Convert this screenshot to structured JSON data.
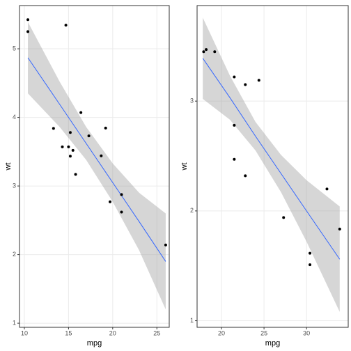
{
  "chart_data": [
    {
      "type": "scatter",
      "xlabel": "mpg",
      "ylabel": "wt",
      "color": "#000000",
      "fit_color": "#3366ff",
      "band_color": "#999999",
      "grid": true,
      "xlim": [
        9.45,
        26.4
      ],
      "ylim": [
        0.94,
        5.63
      ],
      "xticks": [
        10,
        15,
        20,
        25
      ],
      "yticks": [
        1,
        2,
        3,
        4,
        5
      ],
      "x": [
        10.4,
        10.4,
        14.7,
        13.3,
        14.3,
        15.0,
        15.2,
        15.2,
        15.5,
        15.8,
        16.4,
        17.3,
        18.7,
        19.2,
        19.7,
        21.0,
        21.0,
        26.0
      ],
      "values": [
        5.424,
        5.25,
        5.345,
        3.84,
        3.57,
        3.57,
        3.435,
        3.78,
        3.52,
        3.17,
        4.07,
        3.73,
        3.44,
        3.845,
        2.77,
        2.875,
        2.62,
        2.14
      ],
      "fit": {
        "x": [
          10.4,
          14,
          17,
          20,
          23,
          26
        ],
        "y": [
          4.87,
          4.19,
          3.62,
          3.05,
          2.48,
          1.9
        ],
        "lower": [
          4.35,
          3.86,
          3.38,
          2.77,
          2.06,
          1.2
        ],
        "upper": [
          5.39,
          4.52,
          3.86,
          3.33,
          2.9,
          2.6
        ]
      }
    },
    {
      "type": "scatter",
      "xlabel": "mpg",
      "ylabel": "wt",
      "color": "#000000",
      "fit_color": "#3366ff",
      "band_color": "#999999",
      "grid": true,
      "xlim": [
        17.13,
        34.9
      ],
      "ylim": [
        0.94,
        3.87
      ],
      "xticks": [
        20,
        25,
        30
      ],
      "yticks": [
        1,
        2,
        3
      ],
      "x": [
        17.9,
        18.2,
        19.2,
        21.5,
        22.8,
        24.4,
        21.5,
        21.5,
        22.8,
        27.3,
        32.4,
        33.9,
        30.4,
        30.4
      ],
      "values": [
        3.45,
        3.47,
        3.45,
        3.22,
        3.15,
        3.19,
        2.78,
        2.47,
        2.32,
        1.94,
        2.2,
        1.835,
        1.615,
        1.51
      ],
      "fit": {
        "x": [
          17.8,
          21,
          24,
          27,
          30,
          33.9
        ],
        "y": [
          3.39,
          3.03,
          2.68,
          2.34,
          2.0,
          1.56
        ],
        "lower": [
          3.02,
          2.83,
          2.55,
          2.17,
          1.72,
          1.08
        ],
        "upper": [
          3.76,
          3.23,
          2.81,
          2.51,
          2.28,
          2.04
        ]
      }
    }
  ]
}
